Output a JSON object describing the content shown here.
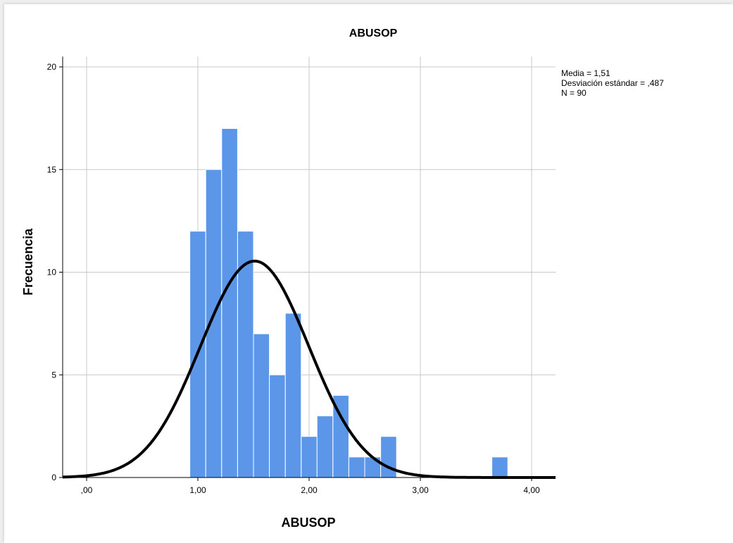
{
  "chart_data": {
    "type": "bar",
    "subtype": "histogram",
    "title": "ABUSOP",
    "xlabel": "ABUSOP",
    "ylabel": "Frecuencia",
    "xlim": [
      -0.2,
      4.2
    ],
    "ylim": [
      0,
      20.5
    ],
    "xticks": [
      0,
      1,
      2,
      3,
      4
    ],
    "xtick_labels": [
      ",00",
      "1,00",
      "2,00",
      "3,00",
      "4,00"
    ],
    "yticks": [
      0,
      5,
      10,
      15,
      20
    ],
    "ytick_labels": [
      "0",
      "5",
      "10",
      "15",
      "20"
    ],
    "grid": true,
    "bar_color": "#5b96e8",
    "bin_width": 0.143,
    "bins": [
      {
        "start": 0.928,
        "count": 12
      },
      {
        "start": 1.071,
        "count": 15
      },
      {
        "start": 1.214,
        "count": 17
      },
      {
        "start": 1.357,
        "count": 12
      },
      {
        "start": 1.5,
        "count": 7
      },
      {
        "start": 1.643,
        "count": 5
      },
      {
        "start": 1.786,
        "count": 8
      },
      {
        "start": 1.929,
        "count": 2
      },
      {
        "start": 2.071,
        "count": 3
      },
      {
        "start": 2.214,
        "count": 4
      },
      {
        "start": 2.357,
        "count": 1
      },
      {
        "start": 2.5,
        "count": 1
      },
      {
        "start": 2.643,
        "count": 2
      },
      {
        "start": 3.643,
        "count": 1
      }
    ],
    "normal_curve": {
      "mean": 1.51,
      "sd": 0.487,
      "n": 90,
      "color": "#000000"
    },
    "stats_text": [
      "Media = 1,51",
      "Desviación estándar = ,487",
      "N = 90"
    ]
  }
}
